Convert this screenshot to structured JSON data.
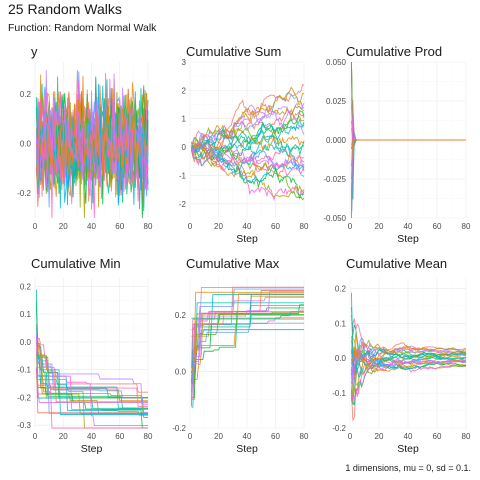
{
  "header": {
    "title": "25 Random Walks",
    "subtitle": "Function: Random Normal Walk",
    "caption": "1 dimensions, mu = 0, sd = 0.1."
  },
  "chart_data": {
    "type": "line",
    "walks": 25,
    "steps": 80,
    "mu": 0,
    "sd": 0.1,
    "colors": [
      "#F8766D",
      "#E58700",
      "#C99800",
      "#A3A500",
      "#6BB100",
      "#00BA38",
      "#00BF7D",
      "#00C0AF",
      "#00BCD8",
      "#00B0F6",
      "#619CFF",
      "#B983FF",
      "#E76BF3",
      "#FD61D1",
      "#FF67A4",
      "#F8766D",
      "#D39200",
      "#93AA00",
      "#00BA38",
      "#00C19F",
      "#00B9E3",
      "#619CFF",
      "#DB72FB",
      "#FF61C3",
      "#E7861B"
    ],
    "panels": [
      {
        "title": "y",
        "xlabel": "",
        "series": "y",
        "xlim": [
          0,
          80
        ],
        "ylim": [
          -0.3,
          0.33
        ],
        "xticks": [
          "0",
          "20",
          "40",
          "60",
          "80"
        ],
        "yticks": [
          -0.2,
          0.0,
          0.2
        ],
        "ytick_labels": [
          "-0.2",
          "0.0",
          "0.2"
        ]
      },
      {
        "title": "Cumulative Sum",
        "xlabel": "Step",
        "series": "cumsum",
        "xlim": [
          0,
          80
        ],
        "ylim": [
          -2.5,
          3
        ],
        "xticks": [
          "0",
          "20",
          "40",
          "60",
          "80"
        ],
        "yticks": [
          -2,
          -1,
          0,
          1,
          2,
          3
        ],
        "ytick_labels": [
          "-2",
          "-1",
          "0",
          "1",
          "2",
          "3"
        ]
      },
      {
        "title": "Cumulative Prod",
        "xlabel": "Step",
        "series": "cumprod",
        "xlim": [
          0,
          80
        ],
        "ylim": [
          -0.05,
          0.05
        ],
        "xticks": [
          "0",
          "20",
          "40",
          "60",
          "80"
        ],
        "yticks": [
          -0.05,
          -0.025,
          0,
          0.025,
          0.05
        ],
        "ytick_labels": [
          "-0.050",
          "-0.025",
          "0.000",
          "0.025",
          "0.050"
        ]
      },
      {
        "title": "Cumulative Min",
        "xlabel": "Step",
        "series": "cummin",
        "xlim": [
          0,
          80
        ],
        "ylim": [
          -0.31,
          0.23
        ],
        "xticks": [
          "0",
          "20",
          "40",
          "60",
          "80"
        ],
        "yticks": [
          -0.3,
          -0.2,
          -0.1,
          0.0,
          0.1,
          0.2
        ],
        "ytick_labels": [
          "-0.3",
          "-0.2",
          "-0.1",
          "0.0",
          "0.1",
          "0.2"
        ]
      },
      {
        "title": "Cumulative Max",
        "xlabel": "Step",
        "series": "cummax",
        "xlim": [
          0,
          80
        ],
        "ylim": [
          -0.2,
          0.33
        ],
        "xticks": [
          "0",
          "20",
          "40",
          "60",
          "80"
        ],
        "yticks": [
          -0.2,
          0.0,
          0.2
        ],
        "ytick_labels": [
          "-0.2",
          "0.0",
          "0.2"
        ]
      },
      {
        "title": "Cumulative Mean",
        "xlabel": "Step",
        "series": "cummean",
        "xlim": [
          0,
          80
        ],
        "ylim": [
          -0.2,
          0.23
        ],
        "xticks": [
          "0",
          "20",
          "40",
          "60",
          "80"
        ],
        "yticks": [
          -0.2,
          -0.1,
          0.0,
          0.1,
          0.2
        ],
        "ytick_labels": [
          "-0.2",
          "-0.1",
          "0.0",
          "0.1",
          "0.2"
        ]
      }
    ]
  }
}
